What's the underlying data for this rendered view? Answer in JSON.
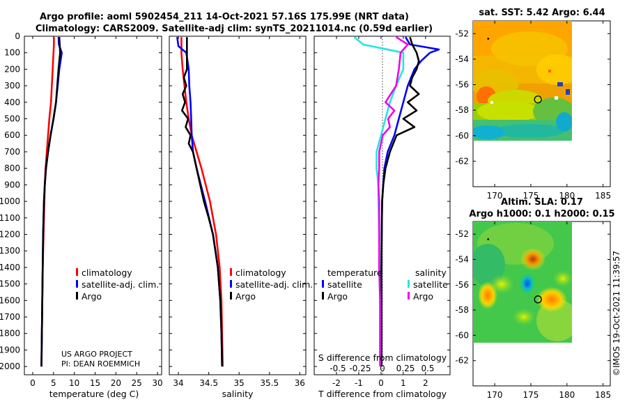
{
  "titles": {
    "line1": "Argo profile: aoml 5902454_211 14-Oct-2021 57.16S 175.99E (NRT data)",
    "line2": "Climatology: CARS2009. Satellite-adj clim: synTS_20211014.nc (0.59d earlier)",
    "sst": "sat. SST: 5.42 Argo: 6.44",
    "sla1": "Altim. SLA: 0.17",
    "sla2": "Argo h1000: 0.1 h2000: 0.15"
  },
  "footer": {
    "project": "US ARGO PROJECT",
    "pi": "PI: DEAN ROEMMICH",
    "stamp": "©IMOS 19-Oct-2021 11:39:57"
  },
  "colors": {
    "climatology": "#ff0000",
    "satellite": "#0000ff",
    "argo": "#000000",
    "sat_salinity": "#22e5e5",
    "argo_salinity": "#ee00ee"
  },
  "chart_data": [
    {
      "type": "line",
      "id": "temperature",
      "xlabel": "temperature (deg C)",
      "ylabel": "",
      "xlim": [
        -2,
        31
      ],
      "ylim": [
        2050,
        0
      ],
      "xticks": [
        0,
        5,
        10,
        15,
        20,
        25,
        30
      ],
      "yticks": [
        0,
        100,
        200,
        300,
        400,
        500,
        600,
        700,
        800,
        900,
        1000,
        1100,
        1200,
        1300,
        1400,
        1500,
        1600,
        1700,
        1800,
        1900,
        2000
      ],
      "legend": [
        "climatology",
        "satellite-adj. clim.",
        "Argo"
      ],
      "series": [
        {
          "name": "climatology",
          "color": "#ff0000",
          "depth": [
            5,
            50,
            100,
            200,
            300,
            400,
            500,
            600,
            700,
            800,
            900,
            1000,
            1200,
            1400,
            1600,
            1800,
            2000
          ],
          "values": [
            5.1,
            5.1,
            5.0,
            4.8,
            4.6,
            4.4,
            4.0,
            3.7,
            3.4,
            3.1,
            2.9,
            2.8,
            2.6,
            2.4,
            2.3,
            2.2,
            2.1
          ]
        },
        {
          "name": "satellite-adj. clim.",
          "color": "#0000ff",
          "depth": [
            5,
            50,
            100,
            200,
            300,
            400,
            500,
            600,
            700,
            800,
            900,
            1000,
            1200,
            1400,
            1600,
            1800,
            2000
          ],
          "values": [
            6.2,
            6.3,
            7.0,
            6.4,
            6.0,
            5.6,
            5.0,
            4.3,
            3.7,
            3.2,
            2.9,
            2.7,
            2.5,
            2.4,
            2.3,
            2.2,
            2.1
          ]
        },
        {
          "name": "Argo",
          "color": "#000000",
          "depth": [
            5,
            50,
            100,
            150,
            200,
            300,
            400,
            500,
            600,
            700,
            800,
            900,
            1000,
            1200,
            1400,
            1600,
            1800,
            2000
          ],
          "values": [
            6.4,
            6.5,
            6.6,
            6.4,
            6.2,
            5.9,
            5.6,
            5.0,
            4.3,
            3.7,
            3.2,
            2.9,
            2.7,
            2.5,
            2.4,
            2.3,
            2.2,
            2.1
          ]
        }
      ]
    },
    {
      "type": "line",
      "id": "salinity",
      "xlabel": "salinity",
      "ylabel": "",
      "xlim": [
        33.85,
        36.1
      ],
      "ylim": [
        2050,
        0
      ],
      "xticks": [
        34,
        34.5,
        35,
        35.5,
        36
      ],
      "legend": [
        "climatology",
        "satellite-adj. clim.",
        "Argo"
      ],
      "series": [
        {
          "name": "climatology",
          "color": "#ff0000",
          "depth": [
            5,
            100,
            200,
            300,
            400,
            500,
            600,
            700,
            800,
            1000,
            1200,
            1400,
            1600,
            1800,
            2000
          ],
          "values": [
            34.05,
            34.05,
            34.07,
            34.1,
            34.13,
            34.17,
            34.22,
            34.3,
            34.38,
            34.52,
            34.62,
            34.68,
            34.71,
            34.72,
            34.73
          ]
        },
        {
          "name": "satellite-adj. clim.",
          "color": "#0000ff",
          "depth": [
            5,
            60,
            100,
            200,
            300,
            400,
            500,
            600,
            700,
            800,
            1000,
            1200,
            1400,
            1600,
            1800,
            2000
          ],
          "values": [
            33.98,
            34.0,
            34.13,
            34.17,
            34.18,
            34.2,
            34.21,
            34.22,
            34.24,
            34.3,
            34.44,
            34.57,
            34.65,
            34.69,
            34.71,
            34.72
          ]
        },
        {
          "name": "Argo",
          "color": "#000000",
          "depth": [
            5,
            50,
            100,
            200,
            250,
            300,
            350,
            400,
            450,
            500,
            550,
            600,
            650,
            700,
            800,
            900,
            1000,
            1100,
            1200,
            1400,
            1600,
            1800,
            2000
          ],
          "values": [
            34.14,
            34.14,
            34.14,
            34.14,
            34.09,
            34.13,
            34.07,
            34.11,
            34.06,
            34.16,
            34.12,
            34.2,
            34.17,
            34.24,
            34.3,
            34.36,
            34.42,
            34.5,
            34.57,
            34.65,
            34.69,
            34.71,
            34.72
          ]
        }
      ]
    },
    {
      "type": "line",
      "id": "difference",
      "xlabel": "T difference from climatology",
      "xlabel_top": "S difference from climatology",
      "xlim": [
        -3,
        3.1
      ],
      "xticks": [
        -2,
        -1,
        0,
        1,
        2
      ],
      "xticks_top": [
        "-0.5",
        "-0.25",
        "0",
        "0.25",
        "0.5"
      ],
      "ylim": [
        2050,
        0
      ],
      "legend_temperature_title": "temperature",
      "legend_salinity_title": "salinity",
      "legend_temperature": [
        "satellite",
        "Argo"
      ],
      "legend_salinity": [
        "satellite",
        "Argo"
      ],
      "series": [
        {
          "name": "temperature satellite",
          "color": "#0000ff",
          "depth": [
            5,
            50,
            80,
            100,
            150,
            200,
            300,
            400,
            500,
            600,
            700,
            800,
            900,
            1000,
            1200,
            1400,
            1600,
            1800,
            2000
          ],
          "values": [
            1.1,
            1.3,
            2.6,
            2.2,
            1.8,
            1.5,
            1.2,
            1.0,
            0.8,
            0.6,
            0.3,
            0.15,
            0.1,
            0.05,
            0.03,
            0.02,
            0.02,
            0.02,
            0.02
          ]
        },
        {
          "name": "temperature Argo",
          "color": "#000000",
          "depth": [
            5,
            50,
            100,
            150,
            200,
            250,
            300,
            350,
            400,
            450,
            500,
            550,
            600,
            700,
            800,
            900,
            1000,
            1200,
            1400,
            1600,
            1800,
            2000
          ],
          "values": [
            1.3,
            1.4,
            1.6,
            1.7,
            1.6,
            1.4,
            1.3,
            1.7,
            1.2,
            1.6,
            1.0,
            1.5,
            0.7,
            0.4,
            0.2,
            0.1,
            0.05,
            0.03,
            0.02,
            0.02,
            0.02,
            0.02
          ]
        },
        {
          "name": "salinity satellite",
          "color": "#22e5e5",
          "depth": [
            5,
            50,
            100,
            200,
            300,
            400,
            500,
            600,
            700,
            800,
            900,
            1000,
            1200,
            1400,
            1600,
            1800,
            2000
          ],
          "values": [
            -0.3,
            -0.2,
            0.25,
            0.25,
            0.17,
            0.1,
            0.05,
            0.0,
            -0.05,
            -0.05,
            -0.03,
            -0.03,
            -0.02,
            -0.02,
            -0.01,
            -0.01,
            -0.01
          ]
        },
        {
          "name": "salinity Argo",
          "color": "#ee00ee",
          "depth": [
            5,
            50,
            100,
            200,
            300,
            400,
            450,
            500,
            550,
            600,
            700,
            800,
            900,
            1000,
            1200,
            1400,
            1600,
            1800,
            2000
          ],
          "values": [
            0.17,
            0.3,
            0.22,
            0.2,
            0.17,
            0.05,
            0.15,
            0.08,
            0.1,
            0.02,
            -0.02,
            -0.02,
            -0.03,
            -0.02,
            -0.02,
            -0.02,
            -0.01,
            -0.01,
            -0.01
          ]
        }
      ]
    },
    {
      "type": "heatmap",
      "id": "sst-map",
      "title": "sat. SST: 5.42 Argo: 6.44",
      "xlim": [
        167,
        186
      ],
      "ylim": [
        -64,
        -51
      ],
      "xticks": [
        170,
        175,
        180,
        185
      ],
      "yticks": [
        -52,
        -54,
        -56,
        -58,
        -60,
        -62
      ],
      "data_extent": {
        "lon": [
          167,
          180
        ],
        "lat": [
          -60,
          -51
        ]
      },
      "float_position": {
        "lon": 175.99,
        "lat": -57.16
      },
      "prior_position": {
        "lon": 169.1,
        "lat": -52.4
      }
    },
    {
      "type": "heatmap",
      "id": "sla-map",
      "title": "Altim. SLA: 0.17 / Argo h1000: 0.1 h2000: 0.15",
      "xlim": [
        167,
        186
      ],
      "ylim": [
        -64,
        -51
      ],
      "xticks": [
        170,
        175,
        180,
        185
      ],
      "yticks": [
        -52,
        -54,
        -56,
        -58,
        -60,
        -62
      ],
      "data_extent": {
        "lon": [
          167,
          180
        ],
        "lat": [
          -60,
          -51
        ]
      },
      "float_position": {
        "lon": 175.99,
        "lat": -57.16
      },
      "prior_position": {
        "lon": 169.1,
        "lat": -52.4
      }
    }
  ]
}
